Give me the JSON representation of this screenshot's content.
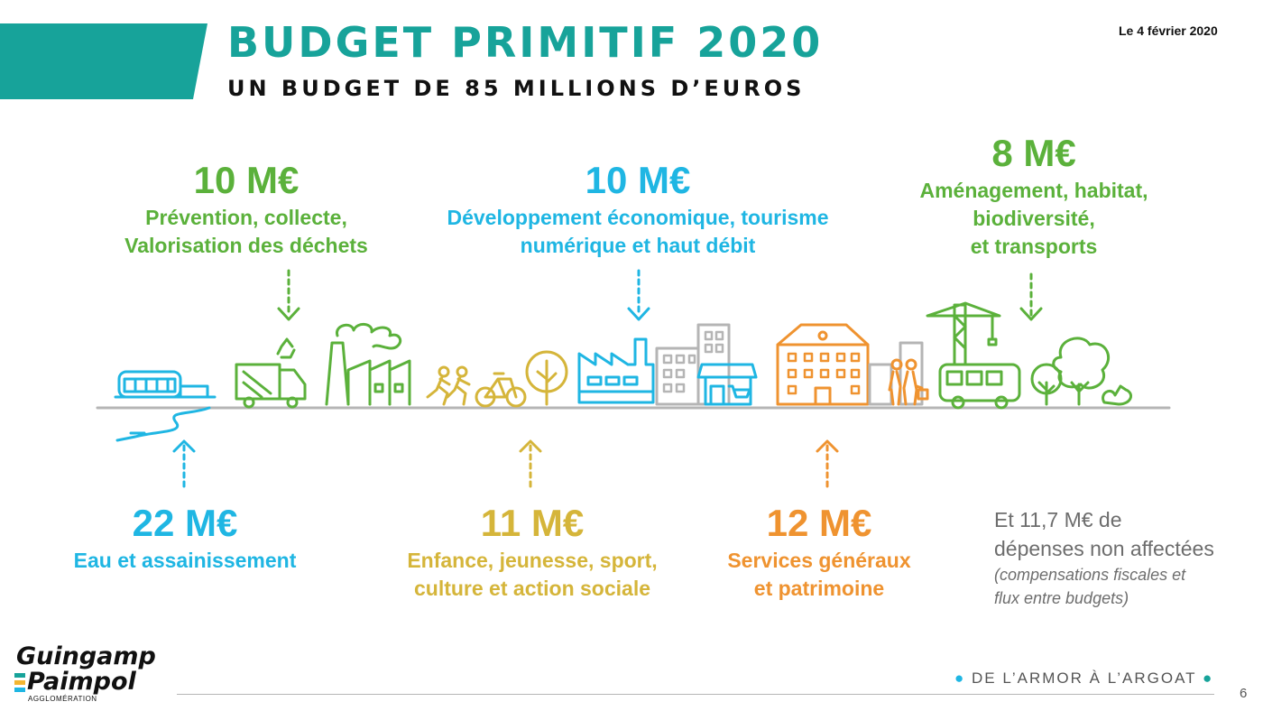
{
  "header": {
    "title": "BUDGET PRIMITIF 2020",
    "subtitle": "UN BUDGET DE 85 MILLIONS D’EUROS",
    "date": "Le 4 février 2020"
  },
  "items": {
    "dechets": {
      "amount": "10 M€",
      "line1": "Prévention, collecte,",
      "line2": "Valorisation des déchets"
    },
    "eco": {
      "amount": "10 M€",
      "line1": "Développement économique, tourisme",
      "line2": "numérique et haut débit"
    },
    "amenagement": {
      "amount": "8 M€",
      "line1": "Aménagement, habitat,",
      "line2": "biodiversité,",
      "line3": "et transports"
    },
    "eau": {
      "amount": "22 M€",
      "line1": "Eau et assainissement"
    },
    "enfance": {
      "amount": "11 M€",
      "line1": "Enfance, jeunesse, sport,",
      "line2": "culture et action sociale"
    },
    "services": {
      "amount": "12 M€",
      "line1": "Services généraux",
      "line2": "et patrimoine"
    }
  },
  "note": {
    "line1": "Et 11,7 M€ de",
    "line2": "dépenses non affectées",
    "line3": "(compensations fiscales et",
    "line4": "flux entre budgets)"
  },
  "footer": {
    "tagline": "DE L’ARMOR À L’ARGOAT",
    "page": "6",
    "logo_line1": "Guingamp",
    "logo_line2": "Paimpol",
    "logo_sub": "AGGLOMÉRATION"
  },
  "colors": {
    "teal": "#17a39a",
    "green": "#5bb13b",
    "cyan": "#1fb6e3",
    "gold": "#d5b53a",
    "orange": "#ef9330",
    "gray": "#b5b5b5"
  }
}
